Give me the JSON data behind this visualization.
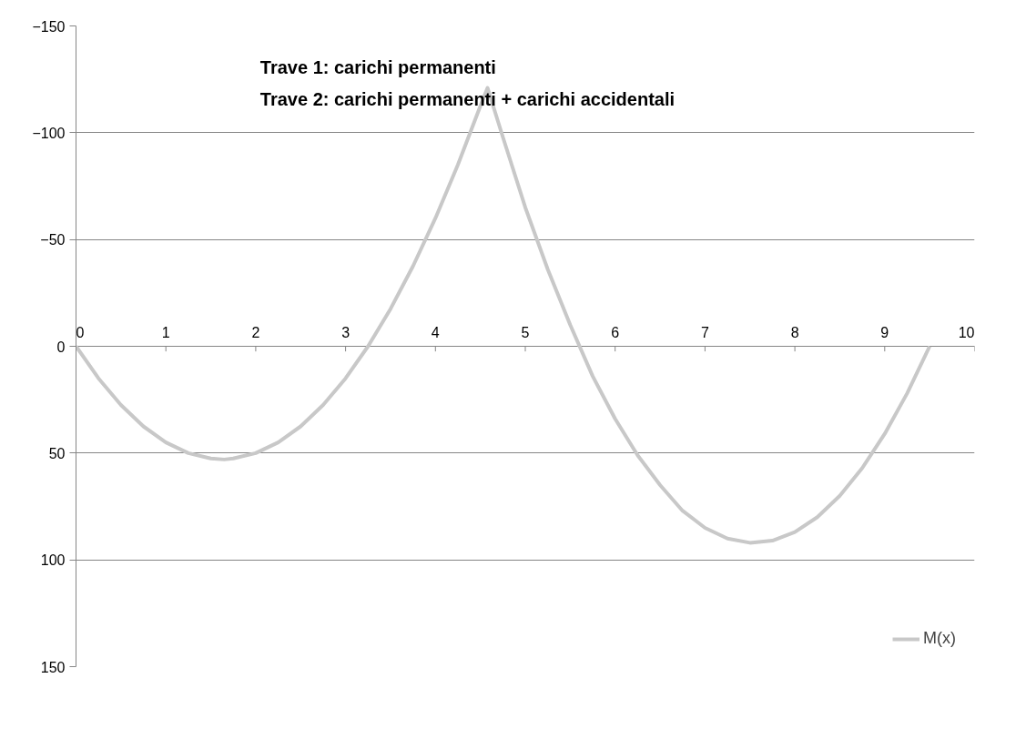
{
  "chart_data": {
    "type": "line",
    "annotations": [
      "Trave 1: carichi permanenti",
      "Trave 2: carichi permanenti + carichi accidentali"
    ],
    "x": [
      0,
      0.25,
      0.5,
      0.75,
      1,
      1.25,
      1.5,
      1.65,
      1.75,
      2,
      2.25,
      2.5,
      2.75,
      3,
      3.25,
      3.5,
      3.75,
      4,
      4.25,
      4.5,
      4.58,
      4.75,
      5,
      5.25,
      5.5,
      5.75,
      6,
      6.25,
      6.5,
      6.75,
      7,
      7.25,
      7.5,
      7.75,
      8,
      8.25,
      8.5,
      8.75,
      9,
      9.25,
      9.5
    ],
    "series": [
      {
        "name": "M(x)",
        "color": "#c8c8c8",
        "values": [
          0,
          15,
          27.5,
          37.5,
          45,
          50,
          52.5,
          53,
          52.5,
          50,
          45,
          37.5,
          27.5,
          15,
          0,
          -17.5,
          -37.5,
          -60,
          -85,
          -112.5,
          -121,
          -98,
          -65,
          -36,
          -10,
          14,
          34,
          51,
          65,
          77,
          85,
          90,
          92,
          91,
          87,
          80,
          70,
          57,
          41,
          22,
          0
        ]
      }
    ],
    "xlim": [
      0,
      10
    ],
    "xticks": [
      0,
      1,
      2,
      3,
      4,
      5,
      6,
      7,
      8,
      9,
      10
    ],
    "ylim": [
      150,
      -150
    ],
    "yticks": [
      -150,
      -100,
      -50,
      0,
      50,
      100,
      150
    ],
    "grid": "y",
    "legend": "right",
    "marker": "none",
    "line_style": "solid"
  }
}
